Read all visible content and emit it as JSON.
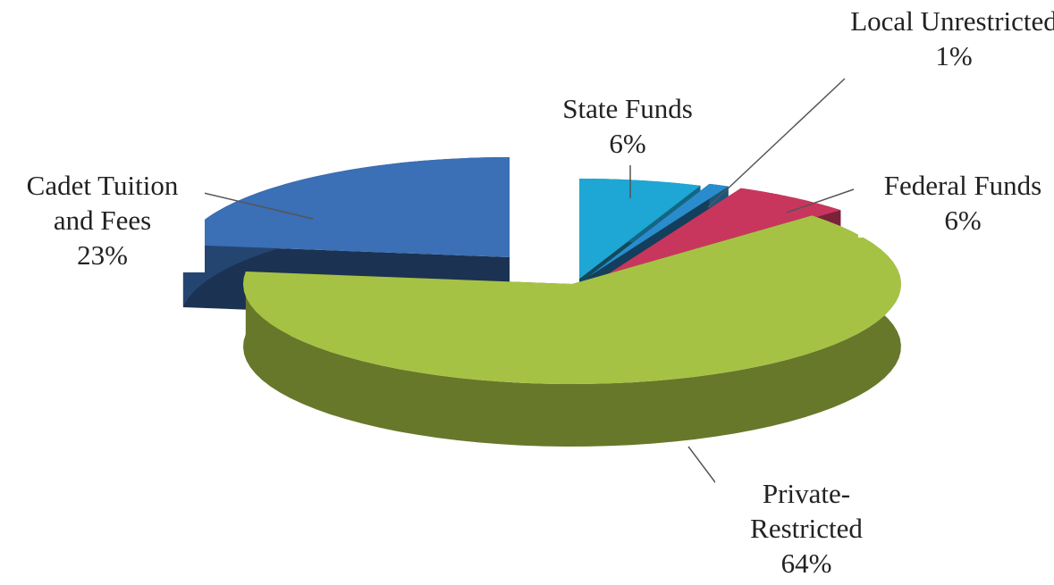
{
  "chart_data": {
    "type": "pie",
    "pie_3d": true,
    "categories": [
      "State Funds",
      "Local Unrestricted",
      "Federal Funds",
      "Private-Restricted",
      "Cadet Tuition and Fees"
    ],
    "values": [
      6,
      1,
      6,
      64,
      23
    ],
    "value_labels": [
      "6%",
      "1%",
      "6%",
      "64%",
      "23%"
    ],
    "colors": [
      "#1ea6d4",
      "#2a8ccc",
      "#c8365e",
      "#a6c244",
      "#3b6fb6"
    ]
  }
}
